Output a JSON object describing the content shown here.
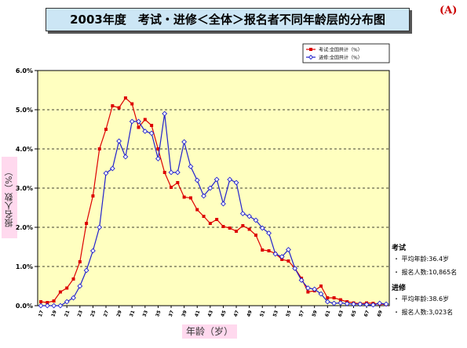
{
  "corner_label": "(A)",
  "stats": [
    {
      "name": "考试",
      "rows": [
        "・ 平均年龄:36.4岁",
        "・ 报名人数:10,865名"
      ]
    },
    {
      "name": "进修",
      "rows": [
        "・ 平均年龄:38.6岁",
        "・ 报名人数:3,023名"
      ]
    }
  ],
  "chart_data": {
    "type": "line",
    "title": "2003年度　考试・进修＜全体＞报名者不同年龄层的分布图",
    "xlabel": "年龄（岁）",
    "ylabel": "报名人数（%）",
    "ylim": [
      0,
      6
    ],
    "yticks": [
      "0.0%",
      "1.0%",
      "2.0%",
      "3.0%",
      "4.0%",
      "5.0%",
      "6.0%"
    ],
    "xtick_labels": [
      "17",
      "19",
      "21",
      "23",
      "25",
      "27",
      "29",
      "31",
      "33",
      "35",
      "37",
      "39",
      "41",
      "43",
      "45",
      "47",
      "49",
      "51",
      "53",
      "55",
      "57",
      "59",
      "61",
      "63",
      "65",
      "67",
      "69"
    ],
    "grid": "horizontal dashed",
    "background_color": "#ffffc0",
    "legend_position": "top-right",
    "x": [
      17,
      18,
      19,
      20,
      21,
      22,
      23,
      24,
      25,
      26,
      27,
      28,
      29,
      30,
      31,
      32,
      33,
      34,
      35,
      36,
      37,
      38,
      39,
      40,
      41,
      42,
      43,
      44,
      45,
      46,
      47,
      48,
      49,
      50,
      51,
      52,
      53,
      54,
      55,
      56,
      57,
      58,
      59,
      60,
      61,
      62,
      63,
      64,
      65,
      66,
      67,
      68,
      69,
      70
    ],
    "series": [
      {
        "name": "考试:全国共计（%）",
        "color": "#dd0000",
        "marker": "square",
        "values": [
          0.1,
          0.08,
          0.12,
          0.35,
          0.45,
          0.68,
          1.12,
          2.1,
          2.8,
          4.0,
          4.5,
          5.1,
          5.05,
          5.3,
          5.15,
          4.55,
          4.75,
          4.6,
          4.0,
          3.4,
          3.02,
          3.14,
          2.77,
          2.75,
          2.45,
          2.28,
          2.1,
          2.2,
          2.02,
          1.98,
          1.9,
          2.04,
          1.95,
          1.8,
          1.42,
          1.4,
          1.33,
          1.18,
          1.14,
          0.95,
          0.7,
          0.35,
          0.38,
          0.5,
          0.2,
          0.2,
          0.15,
          0.1,
          0.07,
          0.05,
          0.07,
          0.06,
          0.04,
          0.03
        ]
      },
      {
        "name": "进修:全国共计（%）",
        "color": "#2222cc",
        "marker": "diamond",
        "values": [
          0.0,
          0.0,
          0.0,
          0.0,
          0.1,
          0.2,
          0.5,
          0.9,
          1.4,
          2.0,
          3.38,
          3.5,
          4.2,
          3.8,
          4.7,
          4.7,
          4.45,
          4.4,
          3.75,
          4.9,
          3.4,
          3.4,
          4.18,
          3.55,
          3.2,
          2.8,
          3.0,
          3.22,
          2.6,
          3.22,
          3.14,
          2.35,
          2.28,
          2.18,
          1.98,
          1.85,
          1.32,
          1.25,
          1.43,
          0.95,
          0.65,
          0.45,
          0.42,
          0.3,
          0.1,
          0.06,
          0.07,
          0.05,
          0.04,
          0.04,
          0.03,
          0.02,
          0.06,
          0.04
        ]
      }
    ]
  }
}
